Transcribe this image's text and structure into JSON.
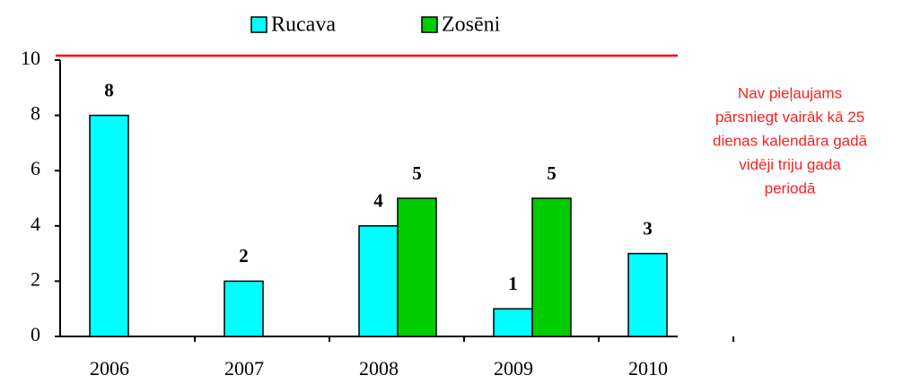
{
  "chart_data": {
    "type": "bar",
    "categories": [
      "2006",
      "2007",
      "2008",
      "2009",
      "2010"
    ],
    "series": [
      {
        "name": "Rucava",
        "color": "#00ffff",
        "values": [
          8,
          2,
          4,
          1,
          3
        ]
      },
      {
        "name": "Zosēni",
        "color": "#00cc00",
        "values": [
          null,
          null,
          5,
          5,
          null
        ]
      }
    ],
    "ylim": [
      0,
      10
    ],
    "yticks": [
      0,
      2,
      4,
      6,
      8,
      10
    ],
    "reference_line": {
      "value": 10,
      "color": "#ff0000"
    },
    "annotation": [
      "Nav pieļaujams",
      "pārsniegt vairāk kā 25",
      "dienas kalendāra gadā",
      "vidēji triju gada",
      "periodā"
    ]
  }
}
